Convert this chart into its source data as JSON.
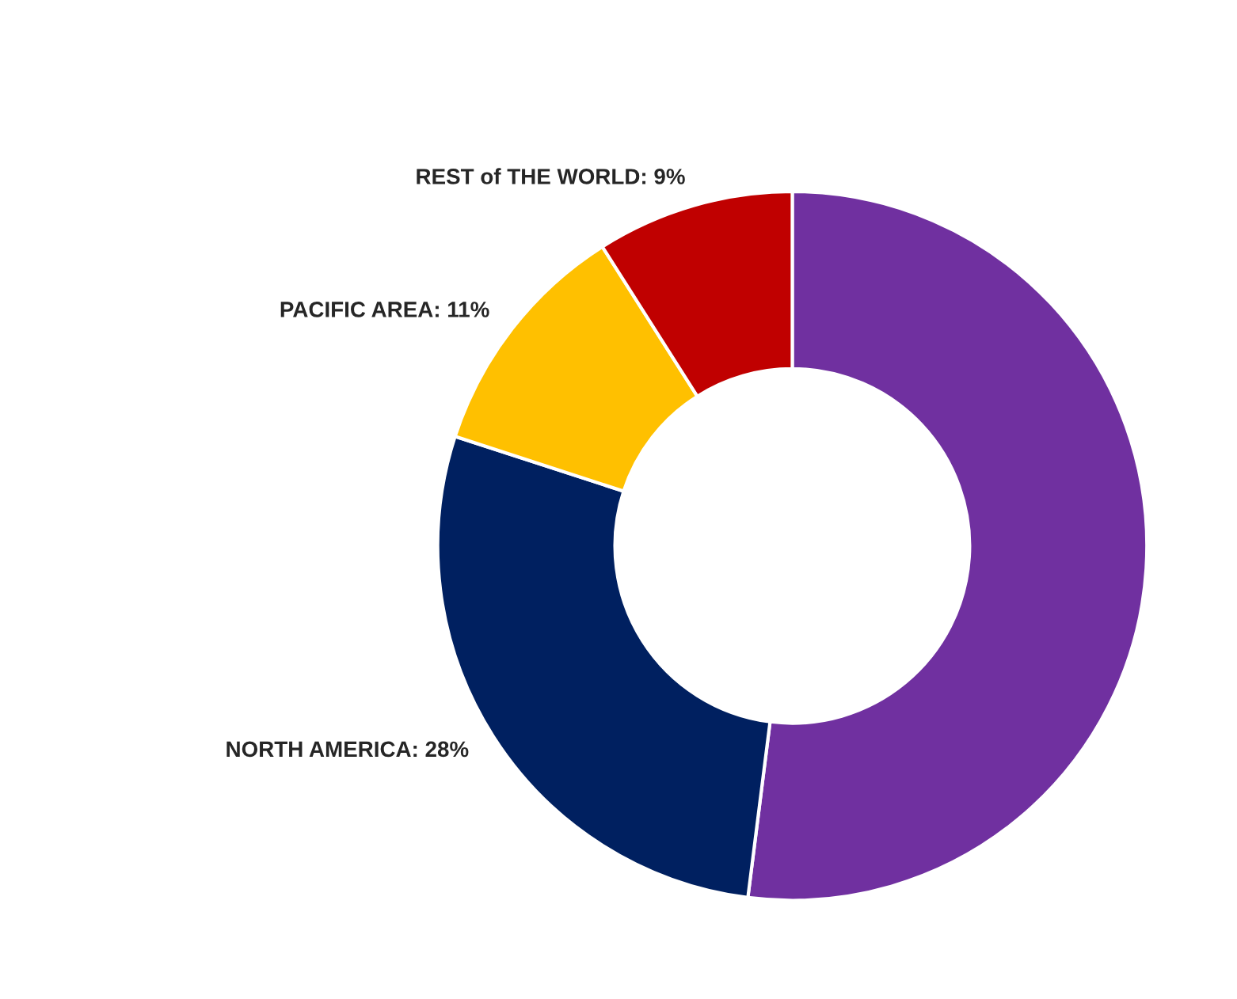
{
  "chart_data": {
    "type": "donut",
    "categories": [
      null,
      "NORTH AMERICA",
      "PACIFIC AREA",
      "REST of THE WORLD"
    ],
    "values": [
      52,
      28,
      11,
      9
    ],
    "value_labels": [
      null,
      "28%",
      "11%",
      "9%"
    ],
    "colors": [
      "#7030a0",
      "#002060",
      "#ffc000",
      "#c00000"
    ],
    "legend": false
  }
}
